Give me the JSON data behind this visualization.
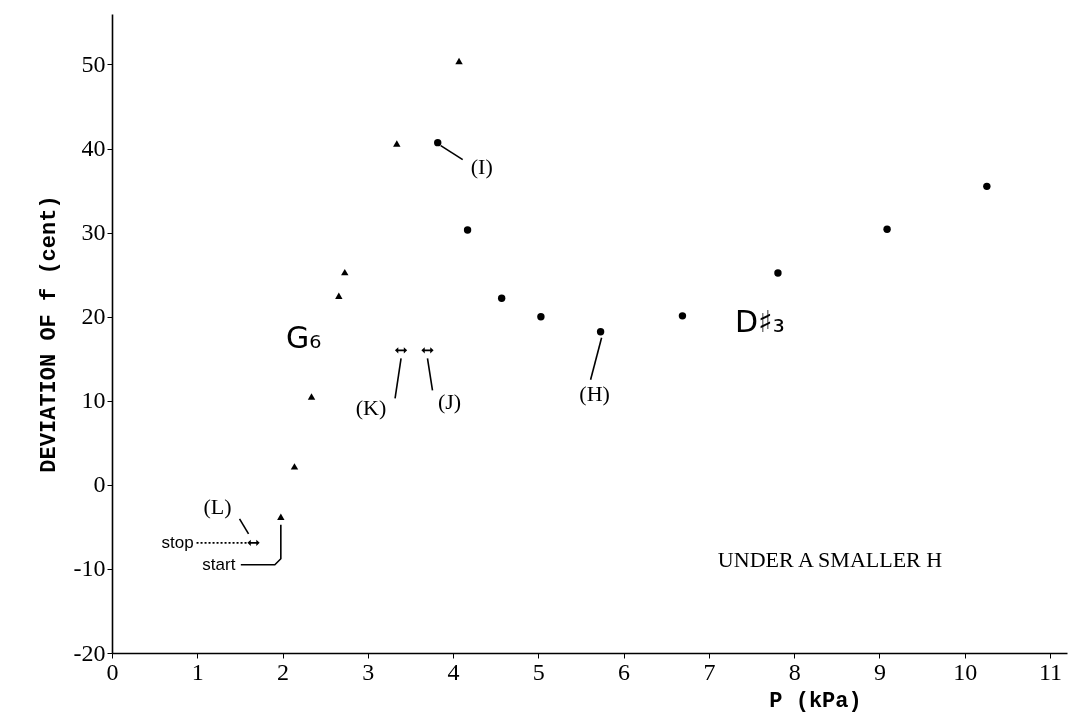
{
  "chart_data": {
    "type": "scatter",
    "xlabel": "P (kPa)",
    "ylabel": "DEVIATION OF f (cent)",
    "xlim": [
      0,
      11.2
    ],
    "ylim": [
      -20,
      56
    ],
    "xticks": [
      0,
      1,
      2,
      3,
      4,
      5,
      6,
      7,
      8,
      9,
      10,
      11
    ],
    "yticks": [
      -20,
      -10,
      0,
      10,
      20,
      30,
      40,
      50
    ],
    "grid": false,
    "legend": false,
    "series": [
      {
        "name": "G₆",
        "color": "#000000",
        "marker": "triangle",
        "x": [
          1.98,
          2.14,
          2.34,
          2.66,
          2.73,
          3.34,
          4.07
        ],
        "values": [
          -3.8,
          2.2,
          10.5,
          22.5,
          25.3,
          40.6,
          50.4
        ]
      },
      {
        "name": "D♯₃",
        "color": "#000000",
        "marker": "circle",
        "x": [
          4.17,
          4.57,
          5.03,
          5.73,
          6.69,
          7.81,
          9.09,
          10.26
        ],
        "values": [
          30.3,
          22.2,
          20.0,
          18.2,
          20.1,
          25.2,
          30.4,
          35.5
        ]
      },
      {
        "color": "#000000",
        "x": [
          3.39,
          3.7,
          1.66
        ],
        "values": [
          16,
          16,
          -6.9
        ]
      },
      {
        "color": "#000000",
        "marker": "circle",
        "x": [
          3.82
        ],
        "values": [
          40.7
        ]
      }
    ],
    "annotations": [
      {
        "text": "(H)",
        "x": 5.73,
        "y": 18.2
      },
      {
        "text": "(I)",
        "x": 3.82,
        "y": 40.7
      },
      {
        "text": "(J)",
        "x": 3.7,
        "y": 16
      },
      {
        "text": "(K)",
        "x": 3.39,
        "y": 16
      },
      {
        "text": "(L)",
        "x": 1.66,
        "y": -6.9
      },
      {
        "text": "stop",
        "x": 1.66,
        "y": -6.9
      },
      {
        "text": "start",
        "x": 1.98,
        "y": -3.8
      },
      "UNDER A SMALLER H"
    ]
  }
}
